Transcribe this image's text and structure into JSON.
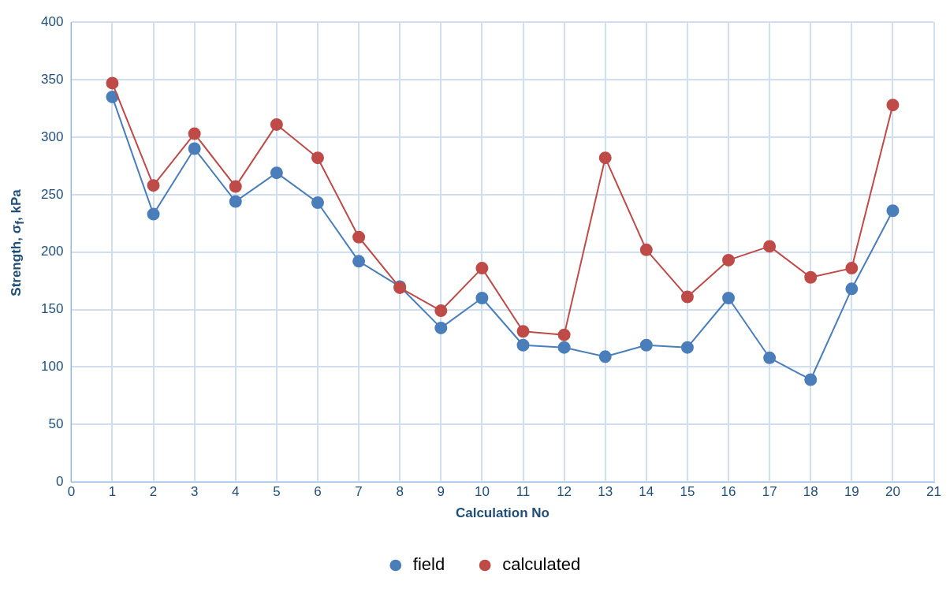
{
  "chart_data": {
    "type": "line",
    "xlabel": "Calculation No",
    "ylabel": "Strength, σ$_{f}$, kPa",
    "x": [
      1,
      2,
      3,
      4,
      5,
      6,
      7,
      8,
      9,
      10,
      11,
      12,
      13,
      14,
      15,
      16,
      17,
      18,
      19,
      20
    ],
    "series": [
      {
        "name": "field",
        "color": "#4a7ebb",
        "values": [
          335,
          233,
          290,
          244,
          269,
          243,
          192,
          170,
          134,
          160,
          119,
          117,
          109,
          119,
          117,
          160,
          108,
          89,
          168,
          236
        ]
      },
      {
        "name": "calculated",
        "color": "#be4b48",
        "values": [
          347,
          258,
          303,
          257,
          311,
          282,
          213,
          169,
          149,
          186,
          131,
          128,
          282,
          202,
          161,
          193,
          205,
          178,
          186,
          328
        ]
      }
    ],
    "xlim": [
      0,
      21
    ],
    "xticks": [
      0,
      1,
      2,
      3,
      4,
      5,
      6,
      7,
      8,
      9,
      10,
      11,
      12,
      13,
      14,
      15,
      16,
      17,
      18,
      19,
      20,
      21
    ],
    "ylim": [
      0,
      400
    ],
    "yticks": [
      0,
      50,
      100,
      150,
      200,
      250,
      300,
      350,
      400
    ],
    "grid": true,
    "legend": "bottom",
    "marker": "circle",
    "line_style": "solid"
  }
}
